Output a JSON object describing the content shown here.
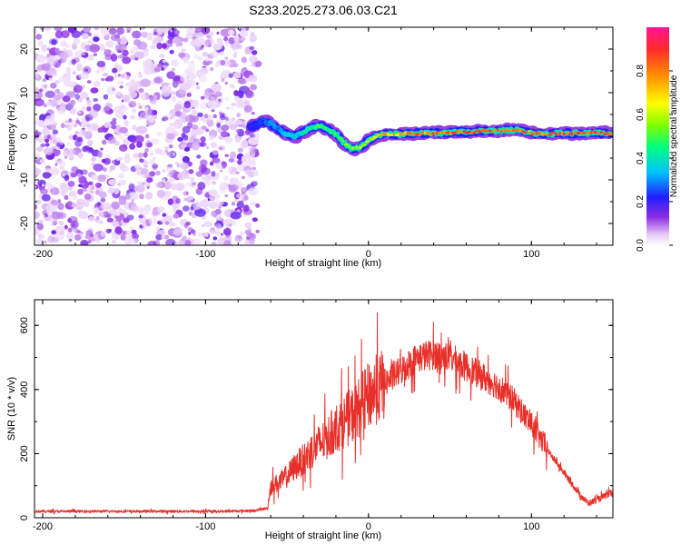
{
  "title": "S233.2025.273.06.03.C21",
  "chart_data": [
    {
      "type": "heatmap",
      "xlabel": "Height of straight line (km)",
      "ylabel": "Frequency (Hz)",
      "xlim": [
        -205,
        150
      ],
      "ylim": [
        -25,
        25
      ],
      "xticks": [
        -200,
        -100,
        0,
        100
      ],
      "yticks": [
        -20,
        -10,
        0,
        10,
        20
      ],
      "noise_region_x": [
        -205,
        -68
      ],
      "ridge": {
        "x": [
          -72,
          -65,
          -60,
          -55,
          -50,
          -45,
          -40,
          -35,
          -30,
          -25,
          -20,
          -15,
          -10,
          -5,
          0,
          5,
          10,
          20,
          30,
          40,
          50,
          60,
          70,
          80,
          90,
          100,
          110,
          120,
          130,
          140,
          150
        ],
        "freq": [
          2,
          3.5,
          3,
          1.5,
          0.5,
          0,
          1,
          2,
          2.5,
          1.5,
          0.5,
          -1.5,
          -3,
          -2.5,
          -1,
          0,
          0.5,
          0.5,
          0.7,
          0.8,
          0.8,
          1,
          1.2,
          1.2,
          1.5,
          0.8,
          0.5,
          0.7,
          0.7,
          0.8,
          0.6
        ],
        "amplitude": [
          0.2,
          0.25,
          0.3,
          0.3,
          0.35,
          0.35,
          0.4,
          0.45,
          0.5,
          0.5,
          0.5,
          0.55,
          0.55,
          0.6,
          0.65,
          0.7,
          0.75,
          0.75,
          0.8,
          0.8,
          0.85,
          0.85,
          0.85,
          0.85,
          0.85,
          0.8,
          0.85,
          0.9,
          0.9,
          0.9,
          0.85
        ]
      },
      "colorbar": {
        "label": "Normalized spectral amplitude",
        "range": [
          0,
          1
        ],
        "ticks": [
          "0.0",
          "0.2",
          "0.4",
          "0.6",
          "0.8"
        ],
        "tick_values": [
          0,
          0.2,
          0.4,
          0.6,
          0.8
        ]
      }
    },
    {
      "type": "line",
      "xlabel": "Height of straight line (km)",
      "ylabel": "SNR (10 * v/v)",
      "xlim": [
        -205,
        150
      ],
      "ylim": [
        0,
        680
      ],
      "xticks": [
        -200,
        -100,
        0,
        100
      ],
      "yticks": [
        0,
        200,
        400,
        600
      ],
      "series": [
        {
          "name": "SNR",
          "color": "#e8302a",
          "x": [
            -205,
            -180,
            -150,
            -120,
            -90,
            -70,
            -62,
            -60,
            -55,
            -50,
            -45,
            -40,
            -35,
            -30,
            -25,
            -20,
            -15,
            -10,
            -5,
            0,
            10,
            20,
            30,
            40,
            50,
            60,
            70,
            80,
            90,
            100,
            110,
            120,
            130,
            135,
            140,
            150
          ],
          "y": [
            20,
            20,
            20,
            20,
            20,
            22,
            30,
            100,
            110,
            130,
            160,
            180,
            210,
            230,
            250,
            280,
            300,
            320,
            350,
            380,
            420,
            460,
            500,
            510,
            500,
            470,
            440,
            410,
            360,
            290,
            210,
            140,
            70,
            45,
            55,
            80
          ]
        }
      ]
    }
  ]
}
